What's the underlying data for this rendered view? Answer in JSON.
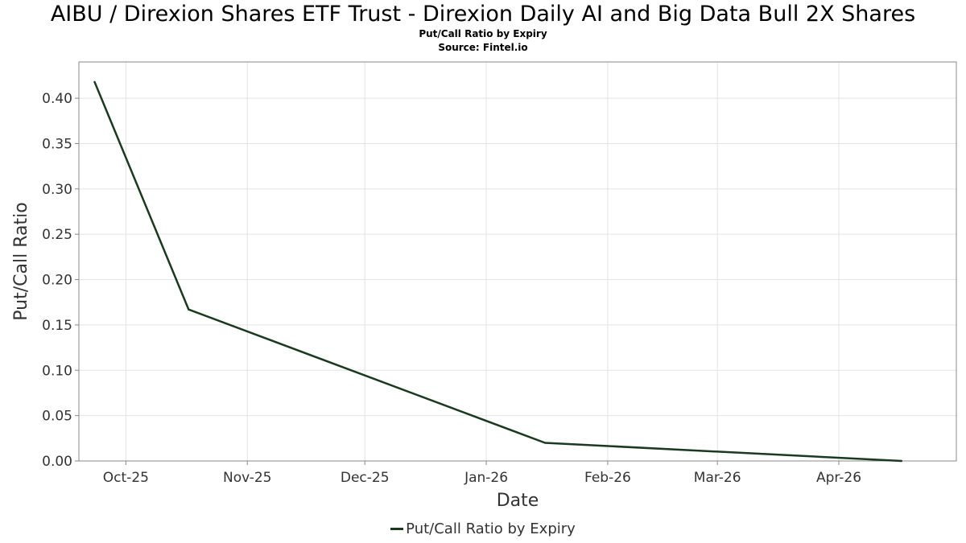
{
  "chart_data": {
    "type": "line",
    "title": "AIBU / Direxion Shares ETF Trust - Direxion Daily AI and Big Data Bull 2X Shares",
    "subtitle": "Put/Call Ratio by Expiry",
    "source": "Source: Fintel.io",
    "xlabel": "Date",
    "ylabel": "Put/Call Ratio",
    "x_ticks": [
      "Oct-25",
      "Nov-25",
      "Dec-25",
      "Jan-26",
      "Feb-26",
      "Mar-26",
      "Apr-26"
    ],
    "x_tick_dates": [
      "2025-10-01",
      "2025-11-01",
      "2025-12-01",
      "2026-01-01",
      "2026-02-01",
      "2026-03-01",
      "2026-04-01"
    ],
    "y_ticks": [
      "0.00",
      "0.05",
      "0.10",
      "0.15",
      "0.20",
      "0.25",
      "0.30",
      "0.35",
      "0.40"
    ],
    "xlim": [
      "2025-09-19",
      "2026-05-01"
    ],
    "ylim": [
      0,
      0.44
    ],
    "grid": true,
    "legend_position": "bottom-center",
    "series": [
      {
        "name": "Put/Call Ratio by Expiry",
        "color": "#1a3a1f",
        "x": [
          "2025-09-23",
          "2025-10-17",
          "2026-01-16",
          "2026-04-17"
        ],
        "values": [
          0.418,
          0.167,
          0.02,
          0.0
        ]
      }
    ]
  }
}
